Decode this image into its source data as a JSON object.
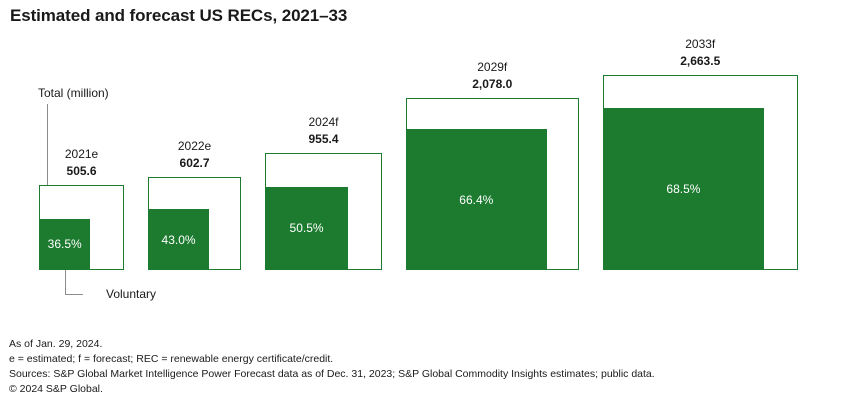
{
  "title": "Estimated and forecast US RECs, 2021–33",
  "annotations": {
    "total_label": "Total (million)",
    "voluntary_label": "Voluntary"
  },
  "chart_data": {
    "type": "proportional-squares",
    "title": "Estimated and forecast US RECs, 2021–33",
    "unit": "million RECs",
    "categories": [
      "2021e",
      "2022e",
      "2024f",
      "2029f",
      "2033f"
    ],
    "series": [
      {
        "name": "Total (million)",
        "values": [
          505.6,
          602.7,
          955.4,
          2078.0,
          2663.5
        ]
      },
      {
        "name": "Voluntary share (%)",
        "values": [
          36.5,
          43.0,
          50.5,
          66.4,
          68.5
        ]
      }
    ],
    "total_labels": [
      "505.6",
      "602.7",
      "955.4",
      "2,078.0",
      "2,663.5"
    ],
    "pct_labels": [
      "36.5%",
      "43.0%",
      "50.5%",
      "66.4%",
      "68.5%"
    ],
    "layout": {
      "note": "square side proportional to sqrt(total); inner square side = outer side * sqrt(pct)",
      "legend": "callout labels: Total (million) to first outer square, Voluntary to first inner square"
    },
    "colors": {
      "voluntary_fill": "#1d7b30",
      "total_outline": "#1d7b30",
      "callout_line": "#8c8c8c",
      "label_text": "#1a1a1a",
      "pct_text": "#ffffff"
    }
  },
  "footnotes": [
    "As of Jan. 29, 2024.",
    "e = estimated; f = forecast; REC = renewable energy certificate/credit.",
    "Sources: S&P Global Market Intelligence Power Forecast data as of Dec. 31, 2023; S&P Global Commodity Insights estimates; public data.",
    "© 2024 S&P Global."
  ]
}
